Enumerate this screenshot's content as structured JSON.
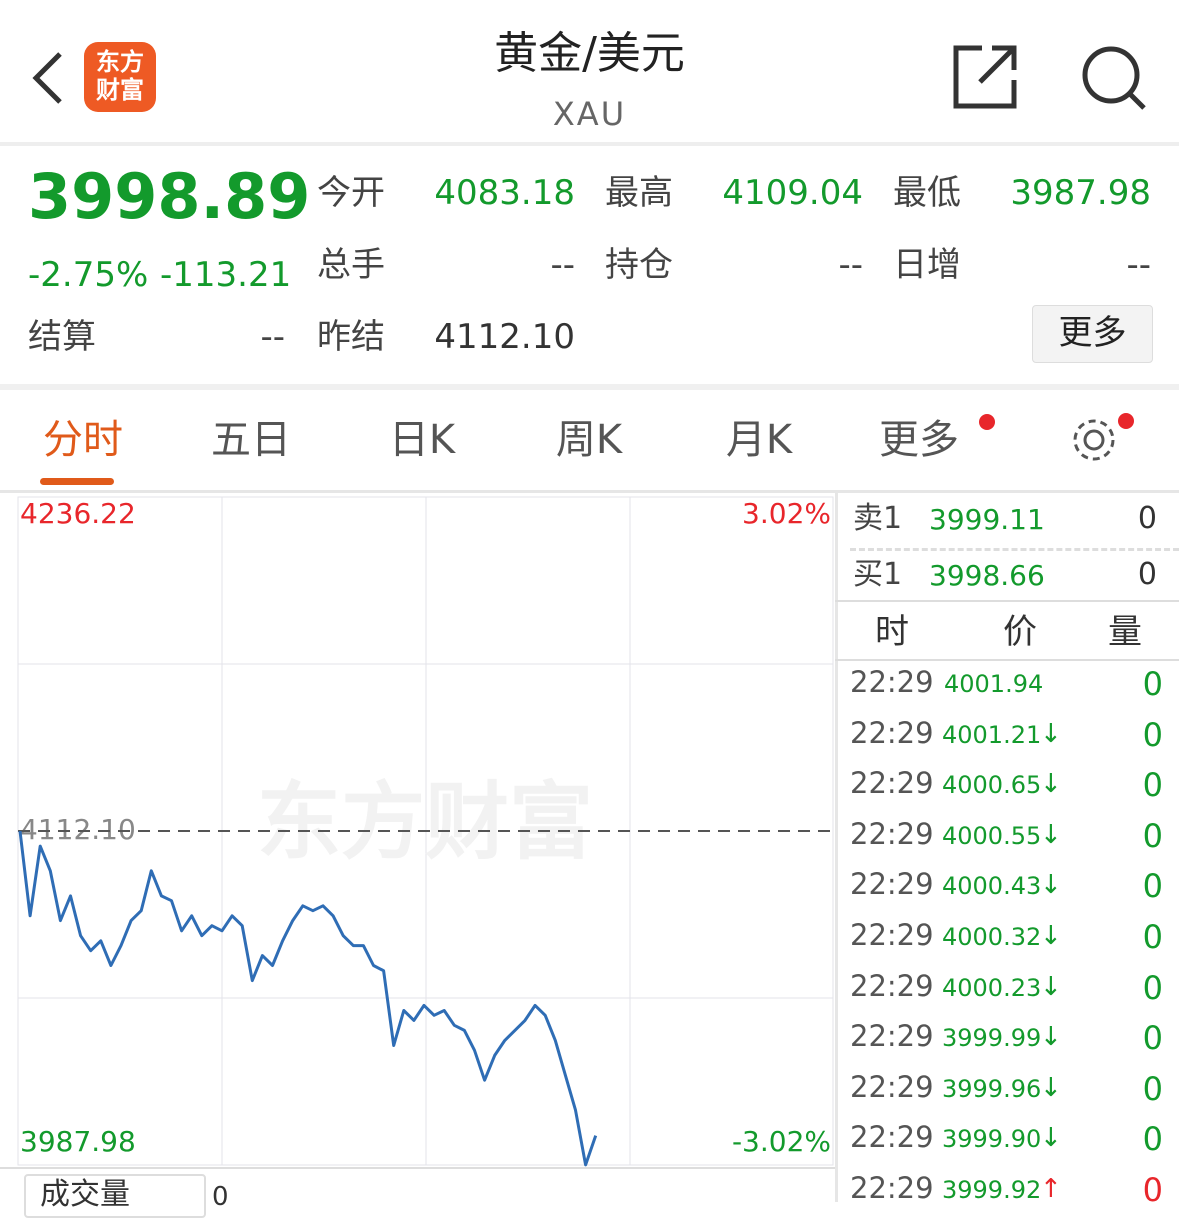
{
  "header": {
    "title": "黄金/美元",
    "subtitle": "XAU",
    "logo": [
      "东方",
      "财富"
    ]
  },
  "quote": {
    "price": "3998.89",
    "change_pct": "-2.75%",
    "change": "-113.21",
    "fields": [
      {
        "label": "今开",
        "value": "4083.18"
      },
      {
        "label": "最高",
        "value": "4109.04"
      },
      {
        "label": "最低",
        "value": "3987.98"
      },
      {
        "label": "总手",
        "value": "--"
      },
      {
        "label": "持仓",
        "value": "--"
      },
      {
        "label": "日增",
        "value": "--"
      }
    ],
    "settlement": {
      "label": "结算",
      "value": "--"
    },
    "prev_settlement": {
      "label": "昨结",
      "value": "4112.10"
    },
    "more": "更多"
  },
  "tabs": [
    "分时",
    "五日",
    "日K",
    "周K",
    "月K",
    "更多"
  ],
  "chart": {
    "type": "line",
    "watermark": "东方财富",
    "color": "#2f6db5",
    "ylim": [
      3987.98,
      4236.22
    ],
    "yticks": [
      {
        "value": 4236.22,
        "label": "4236.22"
      },
      {
        "value": 4112.1,
        "label": "4112.10"
      },
      {
        "value": 3987.98,
        "label": "3987.98"
      }
    ],
    "y2lim": [
      -3.02,
      3.02
    ],
    "y2ticks": [
      {
        "value": 3.02,
        "label": "3.02%"
      },
      {
        "value": -3.02,
        "label": "-3.02%"
      }
    ],
    "values": [
      4112.1,
      4080.6,
      4106.5,
      4097.3,
      4078.8,
      4088.0,
      4073.2,
      4067.6,
      4071.3,
      4062.1,
      4069.5,
      4078.8,
      4082.5,
      4097.3,
      4088.0,
      4086.2,
      4075.0,
      4080.6,
      4073.2,
      4076.9,
      4075.0,
      4080.6,
      4076.9,
      4056.5,
      4065.8,
      4062.1,
      4071.3,
      4078.8,
      4084.3,
      4082.5,
      4084.3,
      4080.6,
      4073.2,
      4069.5,
      4069.5,
      4062.1,
      4060.2,
      4032.4,
      4045.4,
      4041.7,
      4047.3,
      4043.6,
      4045.4,
      4039.9,
      4038.0,
      4030.6,
      4019.5,
      4028.7,
      4034.3,
      4038.0,
      4041.7,
      4047.3,
      4043.6,
      4034.3,
      4021.3,
      4008.4,
      3988.0,
      3998.9
    ],
    "volume_label": "成交量",
    "volume_value": "0"
  },
  "order_book": {
    "asks": [
      {
        "label": "卖1",
        "price": "3999.11",
        "volume": "0"
      }
    ],
    "bids": [
      {
        "label": "买1",
        "price": "3998.66",
        "volume": "0"
      }
    ]
  },
  "trades": {
    "columns": [
      "时",
      "价",
      "量"
    ],
    "rows": [
      {
        "time": "22:29",
        "price": "4001.94",
        "volume": "0"
      },
      {
        "time": "22:29",
        "price": "4001.21",
        "direction": "↓",
        "volume": "0"
      },
      {
        "time": "22:29",
        "price": "4000.65",
        "direction": "↓",
        "volume": "0"
      },
      {
        "time": "22:29",
        "price": "4000.55",
        "direction": "↓",
        "volume": "0"
      },
      {
        "time": "22:29",
        "price": "4000.43",
        "direction": "↓",
        "volume": "0"
      },
      {
        "time": "22:29",
        "price": "4000.32",
        "direction": "↓",
        "volume": "0"
      },
      {
        "time": "22:29",
        "price": "4000.23",
        "direction": "↓",
        "volume": "0"
      },
      {
        "time": "22:29",
        "price": "3999.99",
        "direction": "↓",
        "volume": "0"
      },
      {
        "time": "22:29",
        "price": "3999.96",
        "direction": "↓",
        "volume": "0"
      },
      {
        "time": "22:29",
        "price": "3999.90",
        "direction": "↓",
        "volume": "0"
      },
      {
        "time": "22:29",
        "price": "3999.92",
        "direction": "↑",
        "volume": "0"
      }
    ]
  }
}
